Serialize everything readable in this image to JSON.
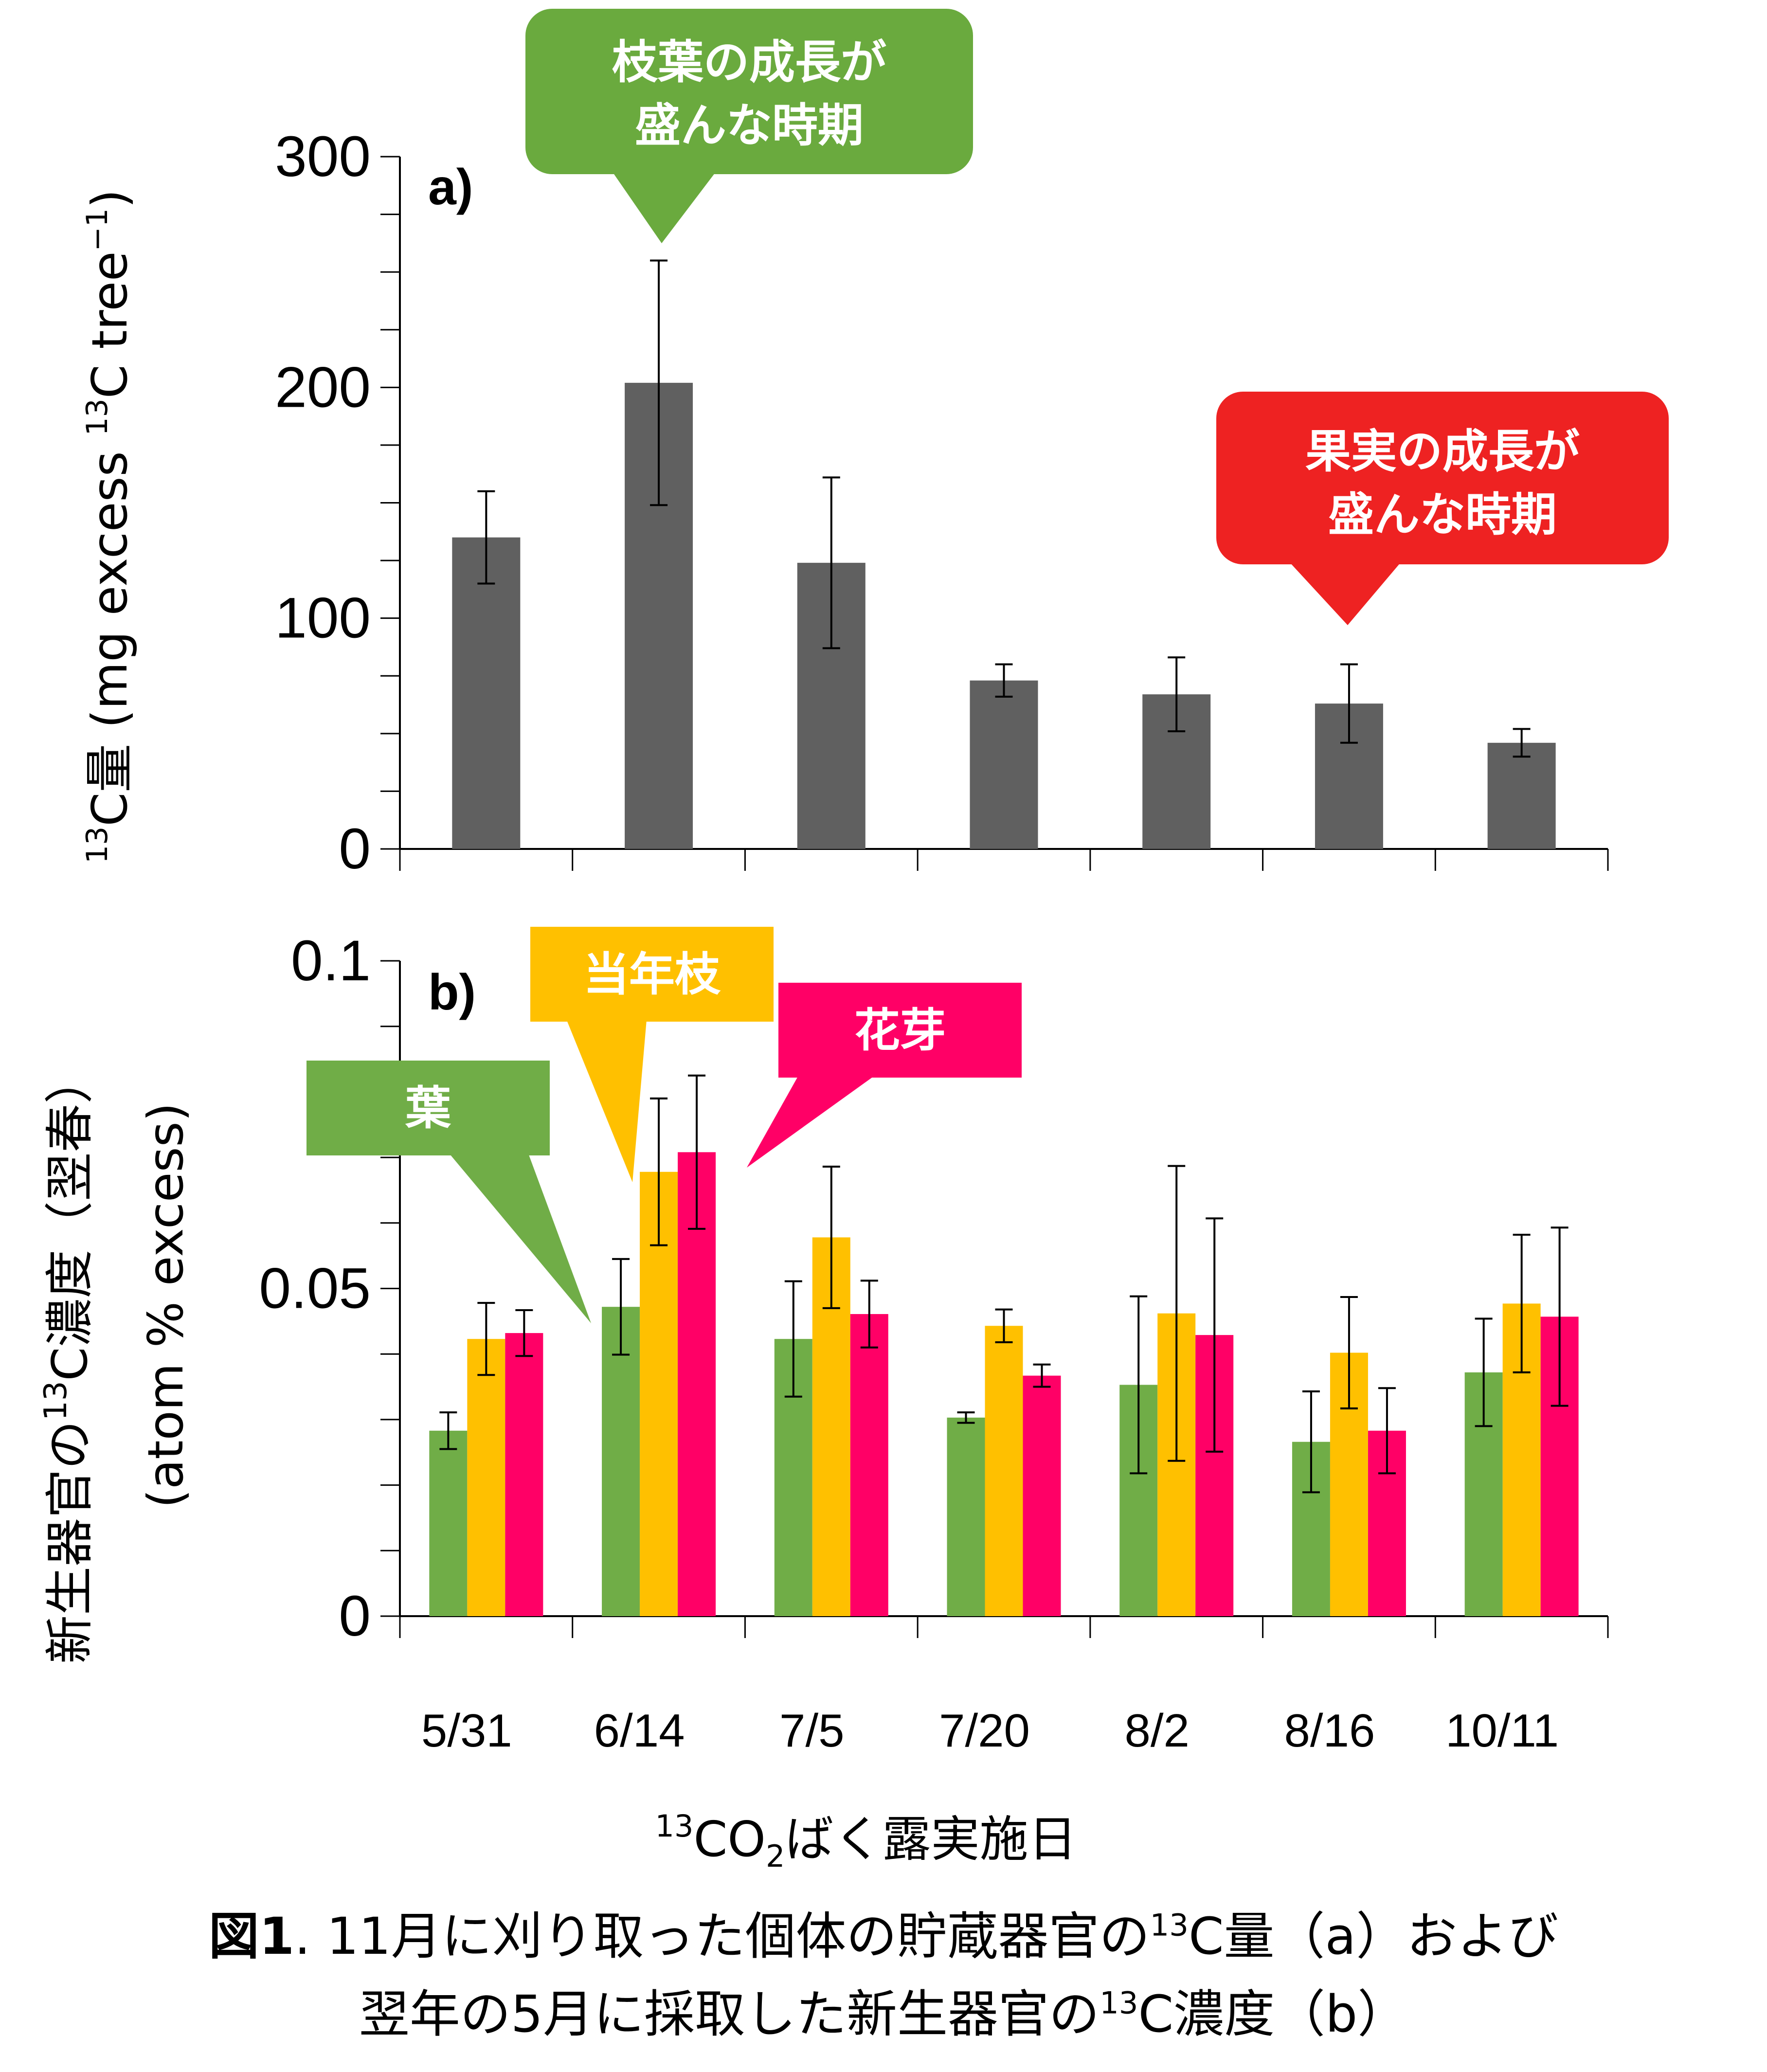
{
  "chart_data": [
    {
      "panel": "a)",
      "type": "bar",
      "categories": [
        "5/31",
        "6/14",
        "7/5",
        "7/20",
        "8/2",
        "8/16",
        "10/11"
      ],
      "series": [
        {
          "values": [
            135,
            202,
            124,
            73,
            67,
            63,
            46
          ],
          "errors": [
            20,
            53,
            37,
            7,
            16,
            17,
            6
          ],
          "color": "#606060"
        }
      ],
      "ylabel": {
        "sup": "13",
        "main": "C量 (mg excess ",
        "sup2": "13",
        "main2": "C tree",
        "sup3": "−1",
        "end": ")"
      },
      "ylim": [
        0,
        300
      ],
      "yticks": [
        "0",
        "100",
        "200",
        "300"
      ],
      "callouts": [
        {
          "line1": "枝葉の成長が",
          "line2": "盛んな時期",
          "color": "#6aaa3e",
          "points_to": "6/14"
        },
        {
          "line1": "果実の成長が",
          "line2": "盛んな時期",
          "color": "#ee2222",
          "points_to": "8/16"
        }
      ]
    },
    {
      "panel": "b)",
      "type": "bar",
      "categories": [
        "5/31",
        "6/14",
        "7/5",
        "7/20",
        "8/2",
        "8/16",
        "10/11"
      ],
      "series": [
        {
          "values": [
            0.0283,
            0.0472,
            0.0423,
            0.0303,
            0.0353,
            0.0266,
            0.0372
          ],
          "errors": [
            0.0028,
            0.0073,
            0.0088,
            0.0008,
            0.0135,
            0.0077,
            0.0082
          ],
          "color": "#70ad47"
        },
        {
          "values": [
            0.0423,
            0.0678,
            0.0578,
            0.0443,
            0.0462,
            0.0402,
            0.0477
          ],
          "errors": [
            0.0055,
            0.0112,
            0.0108,
            0.0025,
            0.0225,
            0.0085,
            0.0105
          ],
          "color": "#ffc000"
        },
        {
          "values": [
            0.0432,
            0.0708,
            0.0461,
            0.0367,
            0.0429,
            0.0283,
            0.0457
          ],
          "errors": [
            0.0035,
            0.0117,
            0.0051,
            0.0017,
            0.0178,
            0.0065,
            0.0136
          ],
          "color": "#ff0066"
        }
      ],
      "callouts": [
        {
          "text": "葉",
          "color": "#70ad47"
        },
        {
          "text": "当年枝",
          "color": "#ffc000"
        },
        {
          "text": "花芽",
          "color": "#ff0066"
        }
      ],
      "ylabel": {
        "line1_pre": "新生器官の",
        "line1_sup": "13",
        "line1_post": "C濃度（翌春）",
        "line2": "(atom % excess)"
      },
      "ylim": [
        0,
        0.1
      ],
      "yticks": [
        "0",
        "0.05",
        "0.1"
      ],
      "xlabel": {
        "sup": "13",
        "pre": "CO",
        "sub": "2",
        "post": "ばく露実施日"
      }
    }
  ],
  "caption": {
    "fig": "図1",
    "line1_a": ". 11月に刈り取った個体の貯蔵器官の",
    "line1_sup": "13",
    "line1_b": "C量（a）および",
    "line2_a": "翌年の5月に採取した新生器官の",
    "line2_sup": "13",
    "line2_b": "C濃度（b）"
  }
}
